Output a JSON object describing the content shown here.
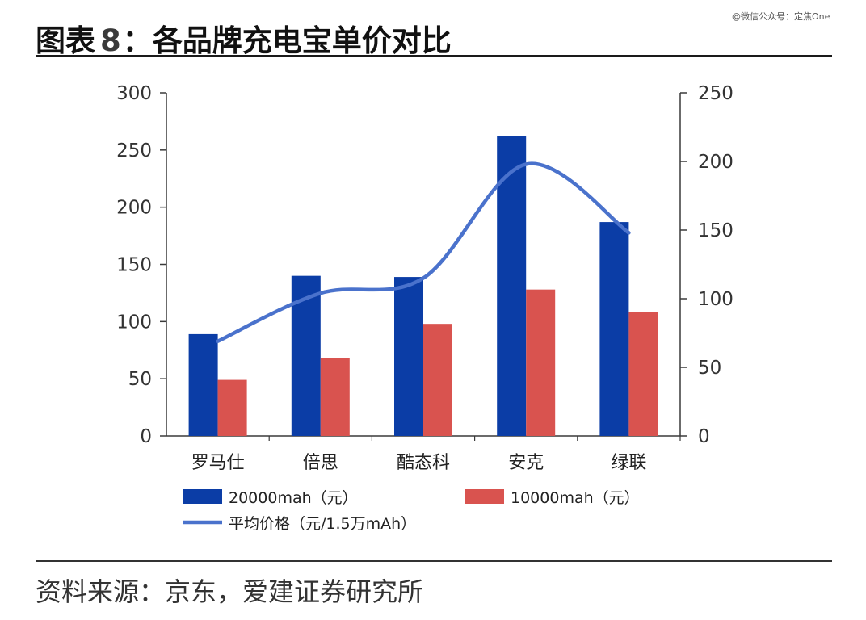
{
  "watermark": "@微信公众号：定焦One",
  "title": {
    "prefix": "图表",
    "number": "8",
    "text": "：各品牌充电宝单价对比"
  },
  "source": "资料来源：京东，爱建证券研究所",
  "colors": {
    "series_20000": "#0b3da6",
    "series_10000": "#d9534f",
    "line": "#4a72cc",
    "axis": "#3a3a3a"
  },
  "chart_data": {
    "type": "bar",
    "categories": [
      "罗马仕",
      "倍思",
      "酷态科",
      "安克",
      "绿联"
    ],
    "series": [
      {
        "name": "20000mah（元）",
        "type": "bar",
        "axis": "left",
        "values": [
          89,
          140,
          139,
          262,
          187
        ]
      },
      {
        "name": "10000mah（元）",
        "type": "bar",
        "axis": "left",
        "values": [
          49,
          68,
          98,
          128,
          108
        ]
      },
      {
        "name": "平均价格（元/1.5万mAh）",
        "type": "line",
        "axis": "right",
        "values": [
          69,
          104,
          115,
          198,
          148
        ]
      }
    ],
    "ylim_left": [
      0,
      300
    ],
    "yticks_left": [
      0,
      50,
      100,
      150,
      200,
      250,
      300
    ],
    "ylim_right": [
      0,
      250
    ],
    "yticks_right": [
      0,
      50,
      100,
      150,
      200,
      250
    ],
    "grid": false,
    "legend_position": "bottom"
  }
}
